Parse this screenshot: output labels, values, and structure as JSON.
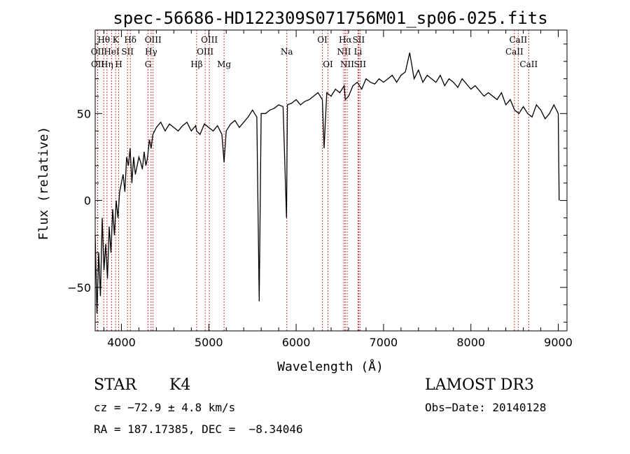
{
  "chart_data": {
    "type": "line",
    "title": "spec-56686-HD122309S071756M01_sp06-025.fits",
    "xlabel": "Wavelength (Å)",
    "ylabel": "Flux (relative)",
    "xlim": [
      3700,
      9100
    ],
    "ylim": [
      -75,
      98
    ],
    "xticks": [
      4000,
      5000,
      6000,
      7000,
      8000,
      9000
    ],
    "yticks": [
      -50,
      0,
      50
    ],
    "grid": false,
    "line_color": "#000000",
    "marker_color": "#cc0000",
    "spectrum": {
      "x": [
        3700,
        3720,
        3740,
        3760,
        3780,
        3800,
        3820,
        3840,
        3860,
        3880,
        3900,
        3920,
        3940,
        3960,
        3980,
        4000,
        4020,
        4040,
        4060,
        4080,
        4100,
        4120,
        4140,
        4160,
        4180,
        4200,
        4220,
        4240,
        4260,
        4280,
        4300,
        4320,
        4340,
        4360,
        4380,
        4400,
        4450,
        4500,
        4550,
        4600,
        4650,
        4700,
        4750,
        4800,
        4850,
        4861,
        4900,
        4950,
        5000,
        5050,
        5100,
        5150,
        5175,
        5200,
        5250,
        5300,
        5350,
        5400,
        5450,
        5500,
        5550,
        5577,
        5600,
        5650,
        5700,
        5750,
        5800,
        5850,
        5890,
        5900,
        5950,
        6000,
        6050,
        6100,
        6150,
        6200,
        6250,
        6300,
        6320,
        6350,
        6400,
        6450,
        6500,
        6550,
        6563,
        6600,
        6650,
        6700,
        6750,
        6800,
        6850,
        6900,
        6950,
        7000,
        7050,
        7100,
        7150,
        7200,
        7250,
        7300,
        7350,
        7400,
        7450,
        7500,
        7550,
        7600,
        7650,
        7700,
        7750,
        7800,
        7850,
        7900,
        7950,
        8000,
        8050,
        8100,
        8150,
        8200,
        8250,
        8300,
        8350,
        8400,
        8450,
        8500,
        8550,
        8600,
        8650,
        8700,
        8750,
        8800,
        8850,
        8900,
        8950,
        9000,
        9010
      ],
      "y": [
        -20,
        -65,
        -30,
        -55,
        -10,
        -40,
        -25,
        -45,
        -15,
        -30,
        -5,
        -20,
        0,
        -10,
        5,
        10,
        15,
        5,
        25,
        20,
        30,
        10,
        25,
        15,
        20,
        25,
        22,
        18,
        28,
        20,
        25,
        35,
        30,
        38,
        40,
        42,
        45,
        40,
        44,
        42,
        40,
        43,
        45,
        40,
        43,
        40,
        38,
        44,
        42,
        40,
        43,
        38,
        22,
        40,
        44,
        46,
        42,
        45,
        48,
        52,
        48,
        -58,
        50,
        50,
        52,
        53,
        55,
        54,
        -10,
        55,
        56,
        58,
        55,
        57,
        58,
        60,
        62,
        58,
        30,
        62,
        60,
        64,
        62,
        66,
        58,
        60,
        66,
        68,
        64,
        70,
        68,
        67,
        70,
        68,
        70,
        72,
        68,
        72,
        74,
        85,
        70,
        75,
        68,
        72,
        70,
        68,
        72,
        66,
        70,
        68,
        65,
        70,
        67,
        64,
        66,
        63,
        60,
        62,
        60,
        58,
        62,
        55,
        58,
        52,
        50,
        54,
        50,
        48,
        55,
        52,
        47,
        50,
        55,
        50,
        0
      ]
    },
    "line_markers": [
      {
        "label": "Hθ",
        "x": 3798,
        "row": 0
      },
      {
        "label": "OII",
        "x": 3727,
        "row": 1
      },
      {
        "label": "OII",
        "x": 3729,
        "row": 2
      },
      {
        "label": "K",
        "x": 3934,
        "row": 0
      },
      {
        "label": "HeI",
        "x": 3889,
        "row": 1
      },
      {
        "label": "Hη",
        "x": 3835,
        "row": 2
      },
      {
        "label": "SII",
        "x": 4070,
        "row": 1
      },
      {
        "label": "H",
        "x": 3969,
        "row": 2
      },
      {
        "label": "Hδ",
        "x": 4102,
        "row": 0
      },
      {
        "label": "OIII",
        "x": 4363,
        "row": 0
      },
      {
        "label": "Hγ",
        "x": 4340,
        "row": 1
      },
      {
        "label": "G",
        "x": 4305,
        "row": 2
      },
      {
        "label": "Hβ",
        "x": 4861,
        "row": 2
      },
      {
        "label": "OIII",
        "x": 5007,
        "row": 0
      },
      {
        "label": "OIII",
        "x": 4959,
        "row": 1
      },
      {
        "label": "Mg",
        "x": 5175,
        "row": 2
      },
      {
        "label": "Na",
        "x": 5893,
        "row": 1
      },
      {
        "label": "OI",
        "x": 6300,
        "row": 0
      },
      {
        "label": "OI",
        "x": 6364,
        "row": 2
      },
      {
        "label": "Hα",
        "x": 6563,
        "row": 0
      },
      {
        "label": "SII",
        "x": 6716,
        "row": 0
      },
      {
        "label": "NII",
        "x": 6548,
        "row": 1
      },
      {
        "label": "Li",
        "x": 6708,
        "row": 1
      },
      {
        "label": "NII",
        "x": 6584,
        "row": 2
      },
      {
        "label": "SII",
        "x": 6731,
        "row": 2
      },
      {
        "label": "CaII",
        "x": 8542,
        "row": 0
      },
      {
        "label": "CaII",
        "x": 8498,
        "row": 1
      },
      {
        "label": "CaII",
        "x": 8662,
        "row": 2
      }
    ]
  },
  "info": {
    "class": "STAR",
    "subclass": "K4",
    "survey": "LAMOST DR3",
    "cz": "cz = −72.9 ± 4.8 km/s",
    "obs_date": "Obs−Date: 20140128",
    "radec": "RA = 187.17385, DEC =  −8.34046"
  }
}
